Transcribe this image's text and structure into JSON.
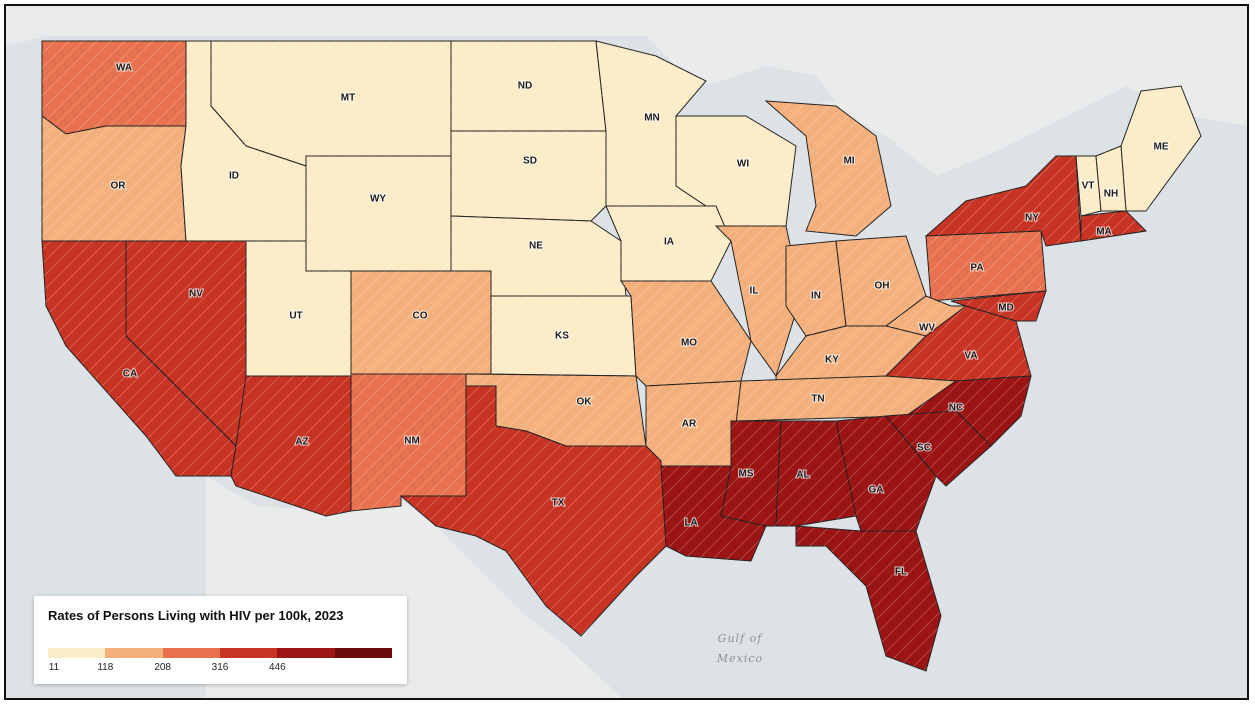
{
  "legend": {
    "title": "Rates of Persons Living with HIV per 100k, 2023",
    "ticks": [
      "11",
      "118",
      "208",
      "316",
      "446"
    ],
    "colors": [
      "#fdecc8",
      "#f4b07c",
      "#e8724f",
      "#c83424",
      "#9b1515",
      "#6b0b0b"
    ]
  },
  "water_label": {
    "line1": "Gulf of",
    "line2": "Mexico"
  },
  "colors": {
    "ocean": "#dde2e6",
    "land_outside": "#eaeceb",
    "no_data": "#d4d4d4",
    "border": "#222222"
  },
  "states": [
    "WA",
    "MT",
    "ND",
    "MN",
    "OR",
    "ID",
    "WY",
    "SD",
    "WI",
    "MI",
    "ME",
    "VT",
    "NH",
    "NY",
    "MA",
    "NE",
    "IA",
    "PA",
    "NV",
    "UT",
    "CO",
    "IL",
    "IN",
    "OH",
    "MD",
    "WV",
    "KS",
    "MO",
    "KY",
    "VA",
    "CA",
    "TN",
    "NC",
    "OK",
    "AR",
    "AZ",
    "NM",
    "SC",
    "MS",
    "AL",
    "GA",
    "TX",
    "LA",
    "FL"
  ]
}
